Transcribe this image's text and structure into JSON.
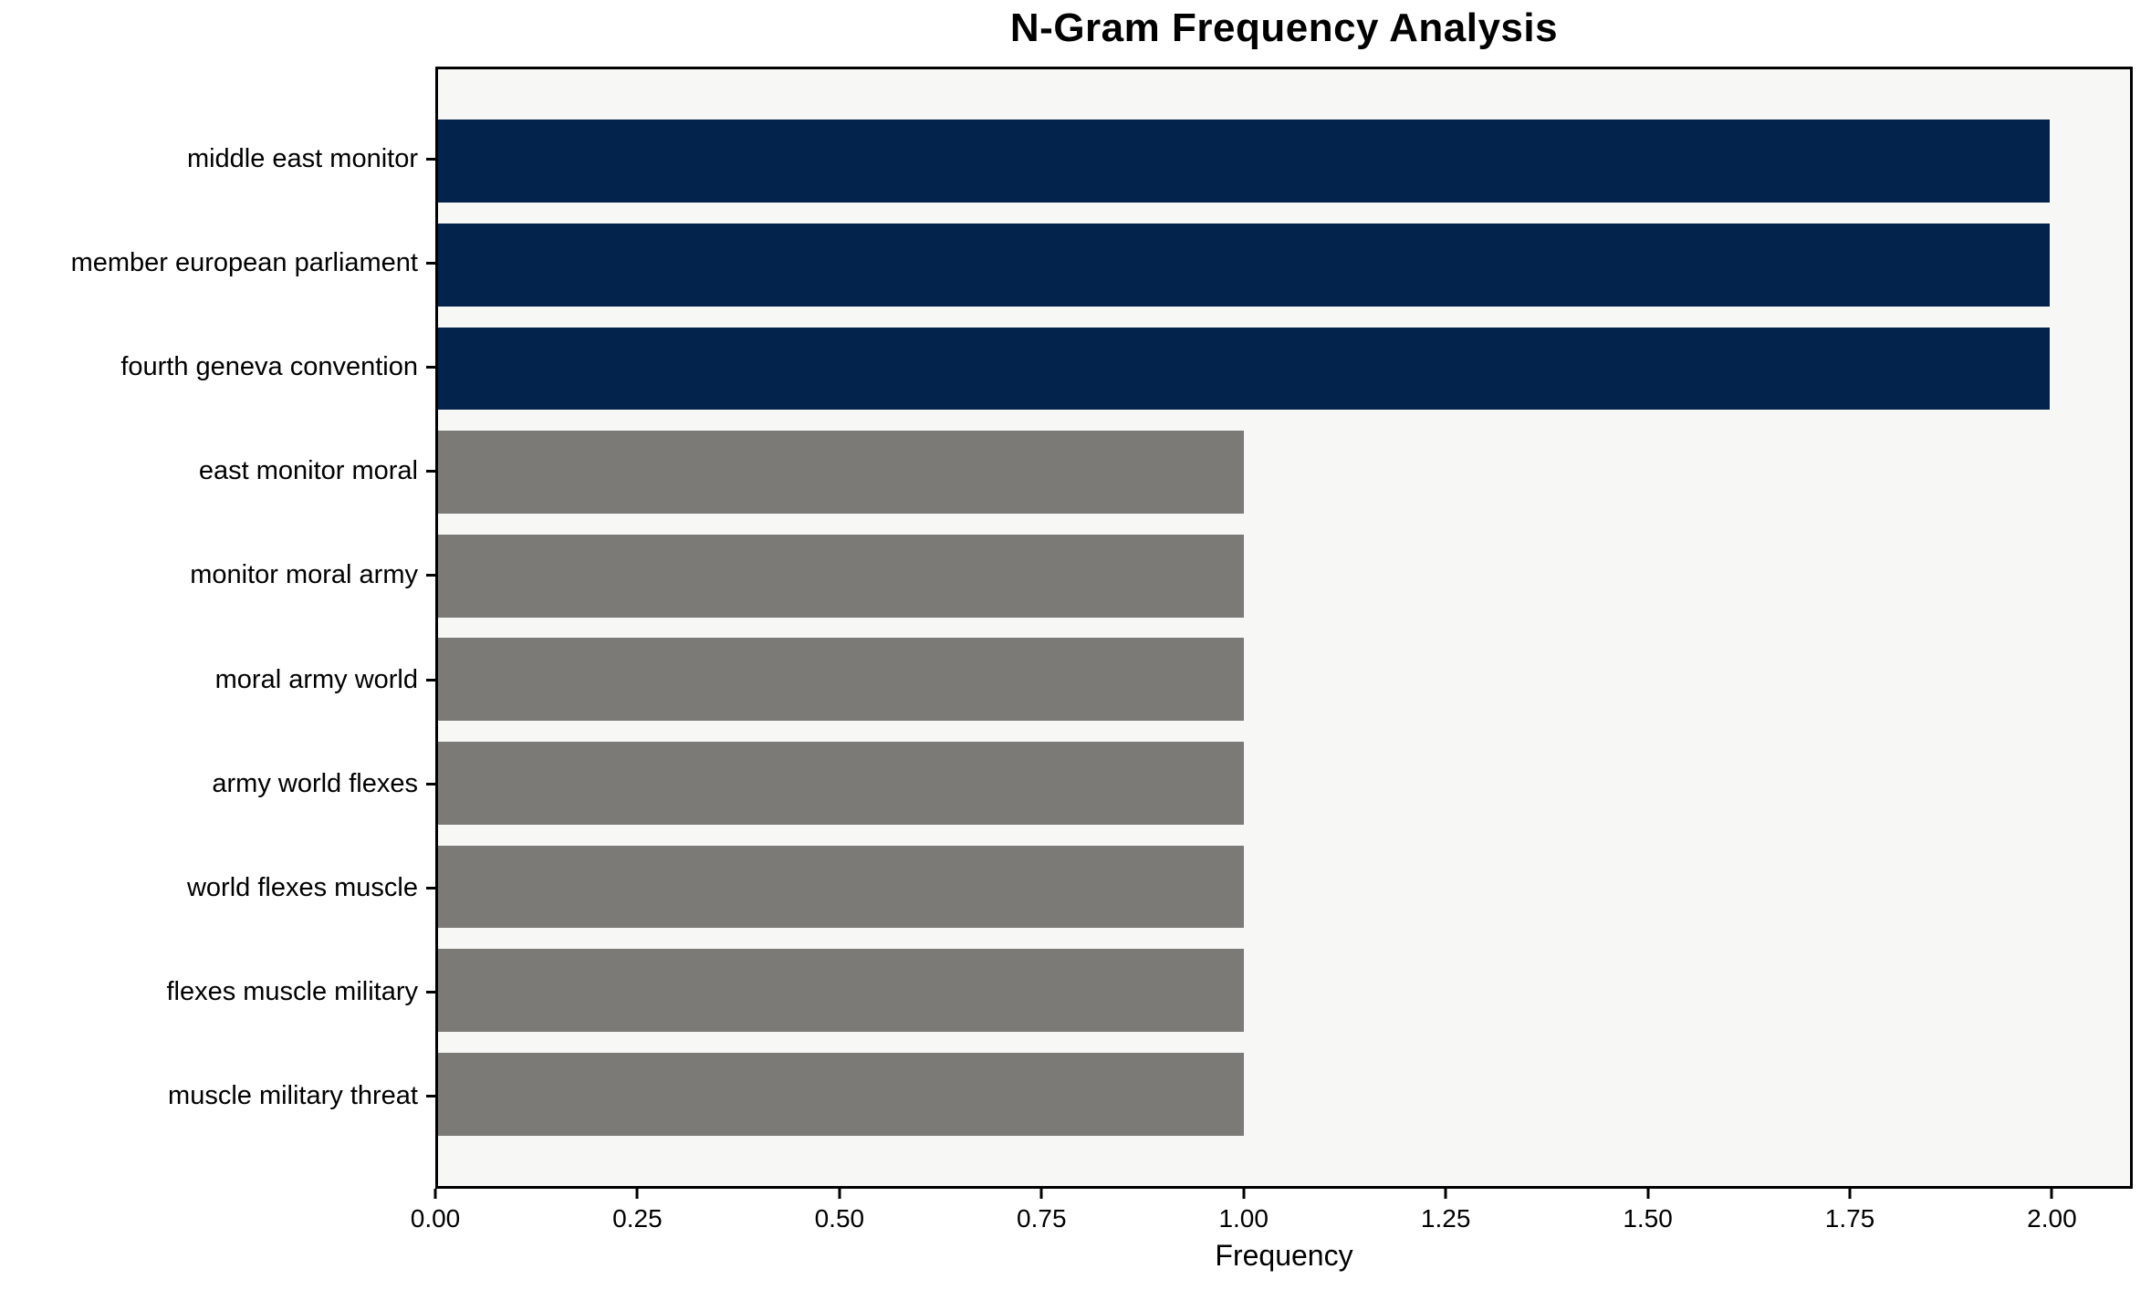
{
  "chart_data": {
    "type": "bar",
    "orientation": "horizontal",
    "title": "N-Gram Frequency Analysis",
    "xlabel": "Frequency",
    "ylabel": "",
    "categories": [
      "middle east monitor",
      "member european parliament",
      "fourth geneva convention",
      "east monitor moral",
      "monitor moral army",
      "moral army world",
      "army world flexes",
      "world flexes muscle",
      "flexes muscle military",
      "muscle military threat"
    ],
    "values": [
      2,
      2,
      2,
      1,
      1,
      1,
      1,
      1,
      1,
      1
    ],
    "bar_colors": [
      "#03234c",
      "#03234c",
      "#03234c",
      "#7b7a77",
      "#7b7a77",
      "#7b7a77",
      "#7b7a77",
      "#7b7a77",
      "#7b7a77",
      "#7b7a77"
    ],
    "xlim": [
      0,
      2.1
    ],
    "xticks": [
      0,
      0.25,
      0.5,
      0.75,
      1.0,
      1.25,
      1.5,
      1.75,
      2.0
    ],
    "xtick_labels": [
      "0.00",
      "0.25",
      "0.50",
      "0.75",
      "1.00",
      "1.25",
      "1.50",
      "1.75",
      "2.00"
    ],
    "colors": {
      "highlight": "#03234c",
      "default": "#7b7a77",
      "plot_bg": "#f7f7f6",
      "figure_bg": "#ffffff",
      "spine": "#000000",
      "text": "#000000"
    },
    "grid": false,
    "legend": null
  }
}
